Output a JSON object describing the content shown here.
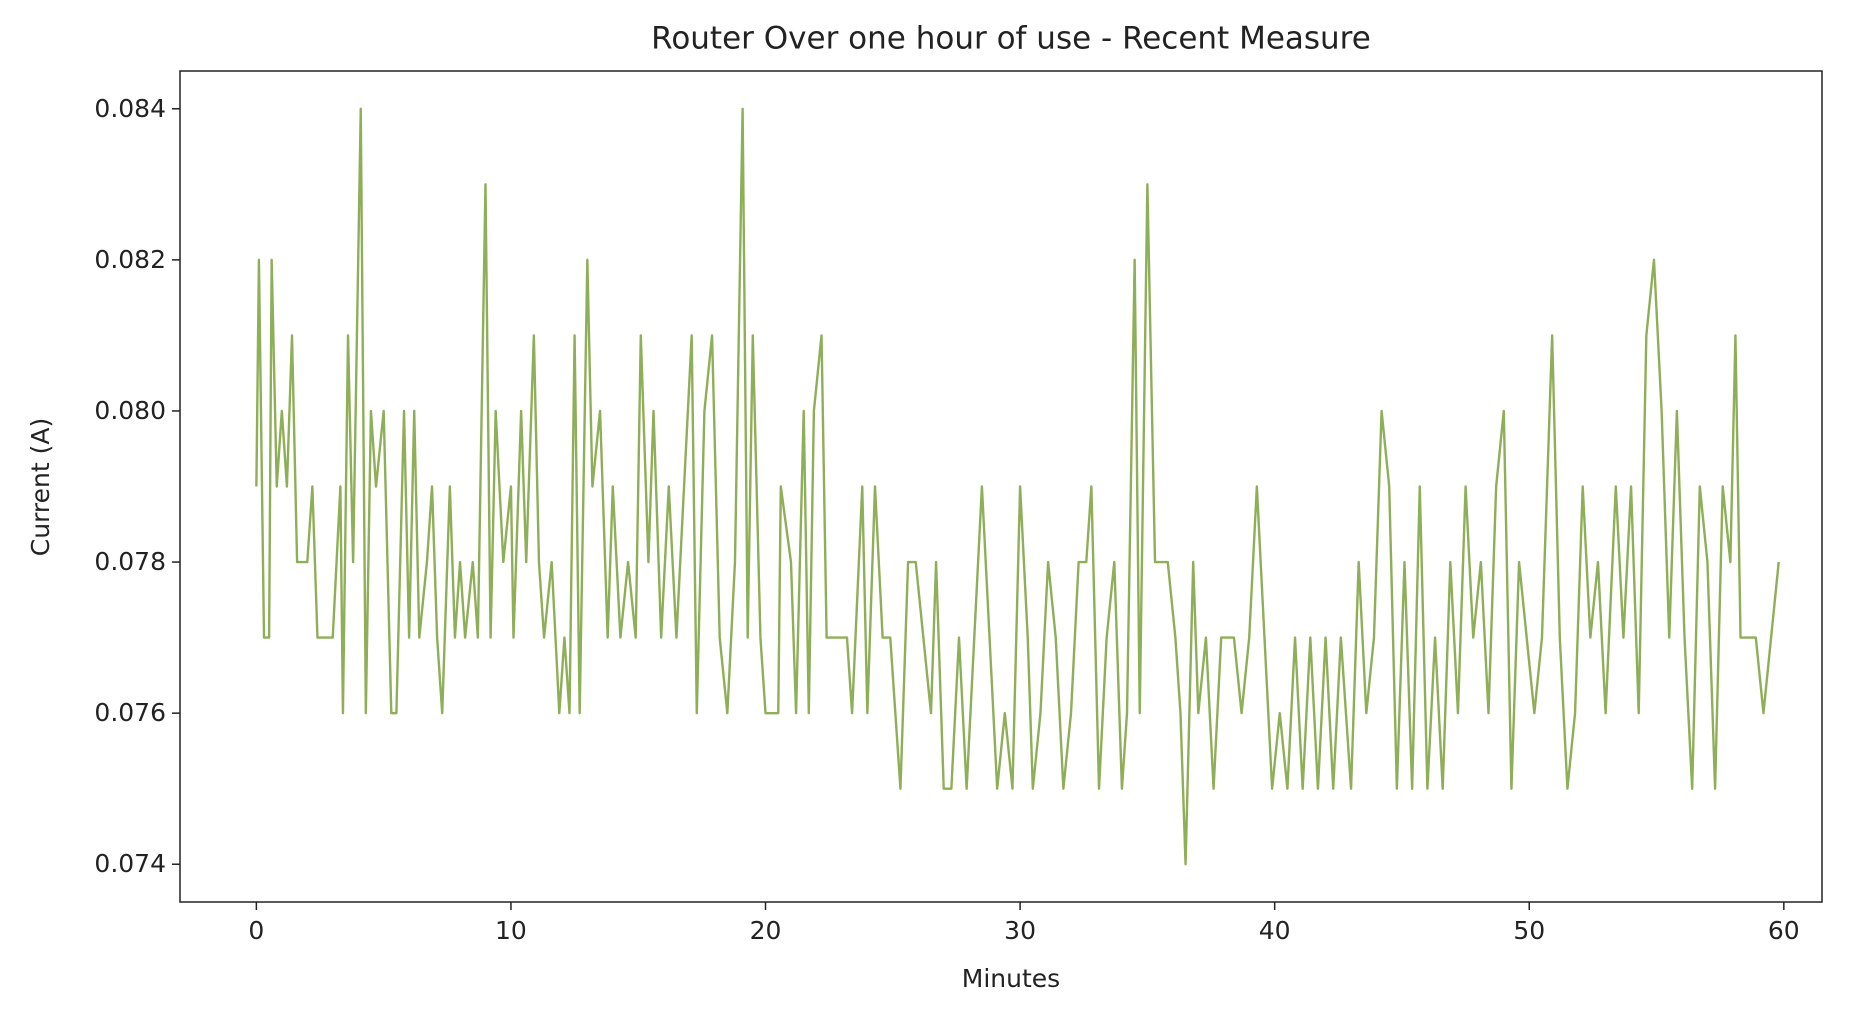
{
  "chart_data": {
    "type": "line",
    "title": "Router Over one hour of use - Recent Measure",
    "xlabel": "Minutes",
    "ylabel": "Current (A)",
    "color": "#8fae58",
    "xlim": [
      -3,
      61.5
    ],
    "ylim": [
      0.0735,
      0.0845
    ],
    "xticks": [
      0,
      10,
      20,
      30,
      40,
      50,
      60
    ],
    "yticks": [
      0.074,
      0.076,
      0.078,
      {
        "value": 0.08,
        "label": "0.080"
      },
      0.082,
      0.084
    ],
    "grid": false,
    "x": [
      0,
      0.1,
      0.3,
      0.5,
      0.6,
      0.8,
      1.0,
      1.2,
      1.4,
      1.6,
      2.0,
      2.2,
      2.4,
      3.0,
      3.3,
      3.4,
      3.6,
      3.8,
      4.1,
      4.3,
      4.5,
      4.7,
      5.0,
      5.3,
      5.5,
      5.8,
      6.0,
      6.2,
      6.4,
      6.7,
      6.9,
      7.1,
      7.3,
      7.6,
      7.8,
      8.0,
      8.2,
      8.5,
      8.7,
      9.0,
      9.2,
      9.4,
      9.7,
      10.0,
      10.1,
      10.4,
      10.6,
      10.9,
      11.1,
      11.3,
      11.6,
      11.9,
      12.1,
      12.3,
      12.5,
      12.7,
      13.0,
      13.2,
      13.5,
      13.8,
      14.0,
      14.3,
      14.6,
      14.9,
      15.1,
      15.4,
      15.6,
      15.9,
      16.2,
      16.5,
      16.8,
      17.1,
      17.3,
      17.6,
      17.9,
      18.2,
      18.5,
      18.8,
      19.1,
      19.3,
      19.5,
      19.8,
      20.0,
      20.5,
      20.6,
      21.0,
      21.2,
      21.5,
      21.7,
      21.9,
      22.2,
      22.4,
      23.2,
      23.4,
      23.8,
      24.0,
      24.3,
      24.6,
      24.9,
      25.3,
      25.6,
      25.9,
      26.2,
      26.5,
      26.7,
      27.0,
      27.3,
      27.6,
      27.9,
      28.2,
      28.5,
      28.8,
      29.1,
      29.4,
      29.7,
      30.0,
      30.3,
      30.5,
      30.8,
      31.1,
      31.4,
      31.7,
      32.0,
      32.3,
      32.6,
      32.8,
      33.1,
      33.4,
      33.7,
      34.0,
      34.2,
      34.5,
      34.7,
      35.0,
      35.3,
      35.8,
      36.1,
      36.3,
      36.5,
      36.8,
      37.0,
      37.3,
      37.6,
      37.9,
      38.4,
      38.7,
      39.0,
      39.3,
      39.6,
      39.9,
      40.2,
      40.5,
      40.8,
      41.1,
      41.4,
      41.7,
      42.0,
      42.3,
      42.6,
      43.0,
      43.3,
      43.6,
      43.9,
      44.2,
      44.5,
      44.8,
      45.1,
      45.4,
      45.7,
      46.0,
      46.3,
      46.6,
      46.9,
      47.2,
      47.5,
      47.8,
      48.1,
      48.4,
      48.7,
      49.0,
      49.3,
      49.6,
      49.9,
      50.2,
      50.5,
      50.9,
      51.2,
      51.5,
      51.8,
      52.1,
      52.4,
      52.7,
      53.0,
      53.4,
      53.7,
      54.0,
      54.3,
      54.6,
      54.9,
      55.2,
      55.5,
      55.8,
      56.1,
      56.4,
      56.7,
      57.0,
      57.3,
      57.6,
      57.9,
      58.1,
      58.3,
      58.9,
      59.2,
      59.5,
      59.8
    ],
    "values": [
      0.079,
      0.082,
      0.077,
      0.077,
      0.082,
      0.079,
      0.08,
      0.079,
      0.081,
      0.078,
      0.078,
      0.079,
      0.077,
      0.077,
      0.079,
      0.076,
      0.081,
      0.078,
      0.084,
      0.076,
      0.08,
      0.079,
      0.08,
      0.076,
      0.076,
      0.08,
      0.077,
      0.08,
      0.077,
      0.078,
      0.079,
      0.077,
      0.076,
      0.079,
      0.077,
      0.078,
      0.077,
      0.078,
      0.077,
      0.083,
      0.077,
      0.08,
      0.078,
      0.079,
      0.077,
      0.08,
      0.078,
      0.081,
      0.078,
      0.077,
      0.078,
      0.076,
      0.077,
      0.076,
      0.081,
      0.076,
      0.082,
      0.079,
      0.08,
      0.077,
      0.079,
      0.077,
      0.078,
      0.077,
      0.081,
      0.078,
      0.08,
      0.077,
      0.079,
      0.077,
      0.079,
      0.081,
      0.076,
      0.08,
      0.081,
      0.077,
      0.076,
      0.078,
      0.084,
      0.077,
      0.081,
      0.077,
      0.076,
      0.076,
      0.079,
      0.078,
      0.076,
      0.08,
      0.076,
      0.08,
      0.081,
      0.077,
      0.077,
      0.076,
      0.079,
      0.076,
      0.079,
      0.077,
      0.077,
      0.075,
      0.078,
      0.078,
      0.077,
      0.076,
      0.078,
      0.075,
      0.075,
      0.077,
      0.075,
      0.077,
      0.079,
      0.077,
      0.075,
      0.076,
      0.075,
      0.079,
      0.077,
      0.075,
      0.076,
      0.078,
      0.077,
      0.075,
      0.076,
      0.078,
      0.078,
      0.079,
      0.075,
      0.077,
      0.078,
      0.075,
      0.076,
      0.082,
      0.076,
      0.083,
      0.078,
      0.078,
      0.077,
      0.076,
      0.074,
      0.078,
      0.076,
      0.077,
      0.075,
      0.077,
      0.077,
      0.076,
      0.077,
      0.079,
      0.077,
      0.075,
      0.076,
      0.075,
      0.077,
      0.075,
      0.077,
      0.075,
      0.077,
      0.075,
      0.077,
      0.075,
      0.078,
      0.076,
      0.077,
      0.08,
      0.079,
      0.075,
      0.078,
      0.075,
      0.079,
      0.075,
      0.077,
      0.075,
      0.078,
      0.076,
      0.079,
      0.077,
      0.078,
      0.076,
      0.079,
      0.08,
      0.075,
      0.078,
      0.077,
      0.076,
      0.077,
      0.081,
      0.077,
      0.075,
      0.076,
      0.079,
      0.077,
      0.078,
      0.076,
      0.079,
      0.077,
      0.079,
      0.076,
      0.081,
      0.082,
      0.08,
      0.077,
      0.08,
      0.077,
      0.075,
      0.079,
      0.078,
      0.075,
      0.079,
      0.078,
      0.081,
      0.077,
      0.077,
      0.076,
      0.077,
      0.078
    ]
  }
}
